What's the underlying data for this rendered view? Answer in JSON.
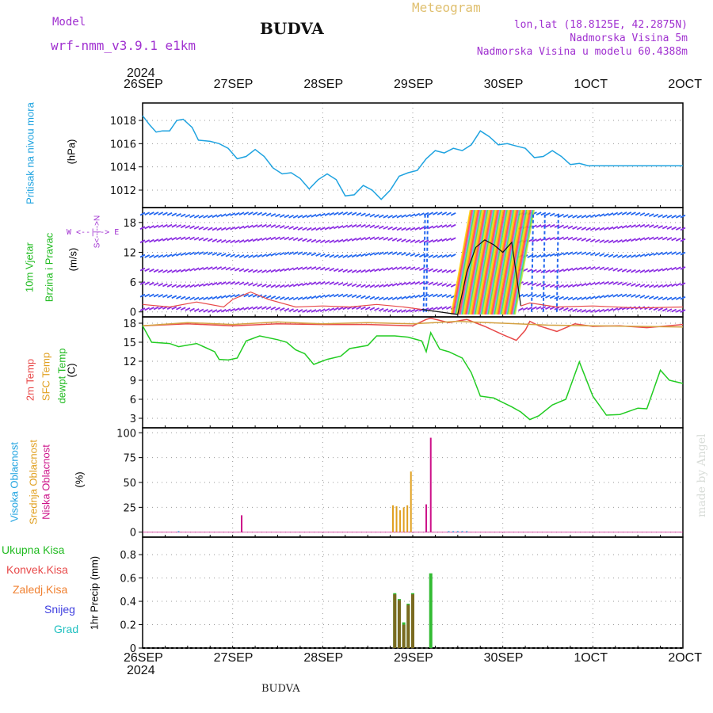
{
  "header": {
    "model_label": "Model",
    "model_name": "wrf-nmm_v3.9.1 e1km",
    "title": "BUDVA",
    "meteogram": "Meteogram",
    "lonlat": "lon,lat (18.8125E, 42.2875N)",
    "elevation": "Nadmorska Visina 5m",
    "model_elevation": "Nadmorska Visina u modelu 60.4388m"
  },
  "footer": {
    "station": "BUDVA",
    "credit": "made by Angel"
  },
  "axes": {
    "year": "2024",
    "dates": [
      "26SEP",
      "27SEP",
      "28SEP",
      "29SEP",
      "30SEP",
      "1OCT",
      "2OCT"
    ]
  },
  "colors": {
    "pressure": "#1fa3e0",
    "temp2m": "#e84a4a",
    "sfc": "#d4a040",
    "dewpt": "#22cc22",
    "wind_purple": "#8a2be2",
    "wind_blue": "#2266ee",
    "high_cloud": "#1fa3e0",
    "mid_cloud": "#e0a020",
    "low_cloud": "#cc1188",
    "total_precip": "#33bb33",
    "conv_precip": "#e84a4a",
    "frozen": "#f08030",
    "snow": "#4040e0",
    "hail": "#20c0c0"
  },
  "panels": {
    "pressure": {
      "left_label": "Pritisak na nivou mora",
      "unit": "(hPa)"
    },
    "wind": {
      "left_label_1": "10m Vjetar",
      "left_label_2": "Brzina i Pravac",
      "unit": "(m/s)",
      "compass_top": "N",
      "compass_left": "W",
      "compass_right": "E",
      "compass_bottom": "S",
      "compass_ns": "S<--|-->N",
      "compass_we": "W <--|--> E"
    },
    "temp": {
      "label_2m": "2m Temp",
      "label_sfc": "SFC Temp",
      "label_dew": "dewpt Temp",
      "unit": "(C)"
    },
    "cloud": {
      "label_high": "Visoka Oblacnost",
      "label_mid": "Srednja Oblacnost",
      "label_low": "Niska Oblacnost",
      "unit": "(%)"
    },
    "precip": {
      "labels": [
        "Ukupna Kisa",
        "Konvek.Kisa",
        "Zaledj.Kisa",
        "Snijeg",
        "Grad"
      ],
      "unit": "1hr Precip (mm)"
    }
  },
  "chart_data": [
    {
      "type": "line",
      "id": "pressure",
      "x_unit": "days since 26SEP 00Z",
      "ylim": [
        1010.5,
        1019.5
      ],
      "yticks": [
        1012,
        1014,
        1016,
        1018
      ],
      "series": [
        {
          "name": "Pritisak na nivou mora",
          "x": [
            0,
            0.08,
            0.15,
            0.22,
            0.3,
            0.38,
            0.45,
            0.55,
            0.62,
            0.75,
            0.85,
            0.95,
            1.05,
            1.15,
            1.25,
            1.35,
            1.45,
            1.55,
            1.65,
            1.75,
            1.85,
            1.95,
            2.05,
            2.15,
            2.25,
            2.35,
            2.45,
            2.55,
            2.65,
            2.75,
            2.85,
            2.95,
            3.05,
            3.15,
            3.25,
            3.35,
            3.45,
            3.55,
            3.65,
            3.75,
            3.85,
            3.95,
            4.05,
            4.15,
            4.25,
            4.35,
            4.45,
            4.55,
            4.65,
            4.75,
            4.85,
            4.95,
            5.05,
            5.15,
            5.25,
            5.35,
            5.45,
            5.55,
            5.65,
            5.75,
            5.85,
            5.95,
            6.0
          ],
          "y": [
            1018.4,
            1017.6,
            1017.0,
            1017.1,
            1017.1,
            1018.0,
            1018.1,
            1017.4,
            1016.3,
            1016.2,
            1016.0,
            1015.6,
            1014.7,
            1014.9,
            1015.5,
            1014.9,
            1013.9,
            1013.4,
            1013.5,
            1013.0,
            1012.1,
            1012.9,
            1013.4,
            1012.9,
            1011.5,
            1011.6,
            1012.4,
            1012.0,
            1011.2,
            1012.0,
            1013.2,
            1013.5,
            1013.7,
            1014.7,
            1015.4,
            1015.2,
            1015.6,
            1015.4,
            1015.9,
            1017.1,
            1016.6,
            1015.9,
            1016.0,
            1015.8,
            1015.6,
            1014.8,
            1014.9,
            1015.4,
            1014.9,
            1014.2,
            1014.3,
            1014.1,
            1014.1,
            1014.1,
            1014.1,
            1014.1,
            1014.1,
            1014.1,
            1014.1,
            1014.1,
            1014.1,
            1014.1,
            1014.1
          ]
        }
      ]
    },
    {
      "type": "scatter",
      "id": "wind",
      "x_unit": "days since 26SEP 00Z",
      "ylim": [
        -1,
        21
      ],
      "yticks": [
        0,
        6,
        12,
        18
      ],
      "series": [
        {
          "name": "10m Vjetar",
          "x": [
            0,
            3.55,
            3.75,
            4.2,
            6.0
          ],
          "y": [
            0.5,
            1.2,
            14.5,
            2.0,
            0.5
          ]
        }
      ]
    },
    {
      "type": "line",
      "id": "temp",
      "x_unit": "days since 26SEP 00Z",
      "ylim": [
        1.5,
        19
      ],
      "yticks": [
        3,
        6,
        9,
        12,
        15,
        18
      ],
      "series": [
        {
          "name": "2m Temp",
          "x": [
            0,
            0.5,
            1,
            1.5,
            2,
            2.5,
            3,
            3.15,
            3.2,
            3.4,
            3.6,
            3.8,
            4.0,
            4.15,
            4.25,
            4.3,
            4.4,
            4.6,
            4.8,
            5.0,
            5.3,
            5.6,
            6.0
          ],
          "y": [
            17.6,
            17.9,
            17.6,
            17.9,
            17.8,
            17.8,
            17.6,
            18.6,
            18.8,
            18.1,
            18.6,
            17.5,
            16.2,
            15.3,
            16.9,
            18.3,
            17.6,
            16.7,
            17.9,
            17.5,
            17.6,
            17.3,
            17.8
          ]
        },
        {
          "name": "SFC Temp",
          "x": [
            0,
            0.5,
            1,
            1.5,
            2,
            2.5,
            3,
            3.5,
            4,
            4.5,
            5,
            5.5,
            6
          ],
          "y": [
            17.6,
            18.1,
            17.8,
            18.2,
            17.9,
            18.1,
            17.9,
            18.3,
            18.0,
            17.7,
            17.6,
            17.5,
            17.4
          ]
        },
        {
          "name": "dewpt Temp",
          "x": [
            0,
            0.1,
            0.3,
            0.4,
            0.6,
            0.8,
            0.85,
            0.95,
            1.05,
            1.15,
            1.3,
            1.5,
            1.6,
            1.7,
            1.8,
            1.9,
            2.05,
            2.2,
            2.3,
            2.5,
            2.6,
            2.8,
            2.95,
            3.1,
            3.15,
            3.2,
            3.3,
            3.4,
            3.55,
            3.65,
            3.75,
            3.9,
            4.1,
            4.2,
            4.3,
            4.4,
            4.55,
            4.7,
            4.85,
            5.0,
            5.15,
            5.3,
            5.5,
            5.6,
            5.75,
            5.85,
            6.0
          ],
          "y": [
            17.6,
            15.0,
            14.8,
            14.3,
            14.8,
            13.5,
            12.3,
            12.2,
            12.5,
            15.2,
            16.0,
            15.4,
            15.0,
            13.8,
            13.2,
            11.5,
            12.3,
            12.8,
            14.0,
            14.5,
            16.0,
            16.0,
            15.8,
            15.2,
            13.5,
            16.5,
            13.9,
            13.5,
            12.5,
            10.2,
            6.5,
            6.2,
            4.8,
            4.0,
            2.8,
            3.4,
            5.1,
            6.0,
            11.9,
            6.5,
            3.5,
            3.6,
            4.6,
            4.5,
            10.6,
            9.0,
            8.5
          ]
        }
      ]
    },
    {
      "type": "bar",
      "id": "cloud",
      "x_unit": "days since 26SEP 00Z",
      "ylim": [
        -5,
        105
      ],
      "yticks": [
        0,
        25,
        50,
        75,
        100
      ],
      "series": [
        {
          "name": "Visoka Oblacnost",
          "x": [
            0.4,
            3.15,
            3.4,
            3.45,
            3.5,
            3.55,
            3.6
          ],
          "values": [
            1,
            1,
            1,
            1,
            1,
            1,
            1
          ]
        },
        {
          "name": "Srednja Oblacnost",
          "x": [
            2.78,
            2.82,
            2.86,
            2.9,
            2.94,
            2.98
          ],
          "values": [
            27,
            26,
            22,
            25,
            27,
            61
          ]
        },
        {
          "name": "Niska Oblacnost",
          "x": [
            1.1,
            3.15,
            3.2
          ],
          "values": [
            17,
            28,
            95
          ]
        }
      ]
    },
    {
      "type": "bar",
      "id": "precip",
      "x_unit": "days since 26SEP 00Z",
      "ylim": [
        0,
        0.95
      ],
      "yticks": [
        0,
        0.2,
        0.4,
        0.6,
        0.8
      ],
      "series": [
        {
          "name": "Ukupna Kisa",
          "x": [
            2.8,
            2.85,
            2.9,
            2.95,
            3.0,
            3.2
          ],
          "values": [
            0.47,
            0.42,
            0.22,
            0.38,
            0.47,
            0.64
          ]
        },
        {
          "name": "Konvek.Kisa",
          "x": [
            2.8,
            2.85,
            2.9,
            2.95,
            3.0
          ],
          "values": [
            0.46,
            0.41,
            0.2,
            0.37,
            0.46
          ]
        }
      ]
    }
  ]
}
